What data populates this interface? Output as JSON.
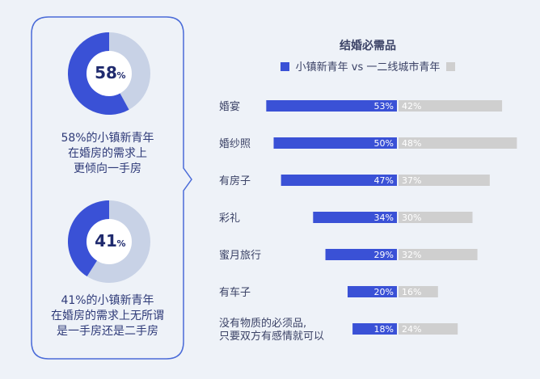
{
  "left": {
    "donuts": [
      {
        "value": 58,
        "value_label": "58",
        "pct_symbol": "%",
        "caption_lines": [
          "58%的小镇新青年",
          "在婚房的需求上",
          "更倾向一手房"
        ]
      },
      {
        "value": 41,
        "value_label": "41",
        "pct_symbol": "%",
        "caption_lines": [
          "41%的小镇新青年",
          "在婚房的需求上无所谓",
          "是一手房还是二手房"
        ]
      }
    ],
    "colors": {
      "fill": "#3a51d6",
      "track": "#c8d2e6",
      "outline": "#4a6bd8"
    }
  },
  "chart_data": {
    "type": "bar",
    "orientation": "horizontal",
    "title": "结婚必需品",
    "categories": [
      "婚宴",
      "婚纱照",
      "有房子",
      "彩礼",
      "蜜月旅行",
      "有车子",
      "没有物质的必须品,\n只要双方有感情就可以"
    ],
    "series": [
      {
        "name": "小镇新青年",
        "values": [
          53,
          50,
          47,
          34,
          29,
          20,
          18
        ],
        "color": "#3a51d6"
      },
      {
        "name": "一二线城市青年",
        "values": [
          42,
          48,
          37,
          30,
          32,
          16,
          24
        ],
        "color": "#cfcfcf"
      }
    ],
    "legend_separator": "vs",
    "value_suffix": "%",
    "xlim": [
      0,
      60
    ],
    "grid": false,
    "legend_position": "top"
  }
}
